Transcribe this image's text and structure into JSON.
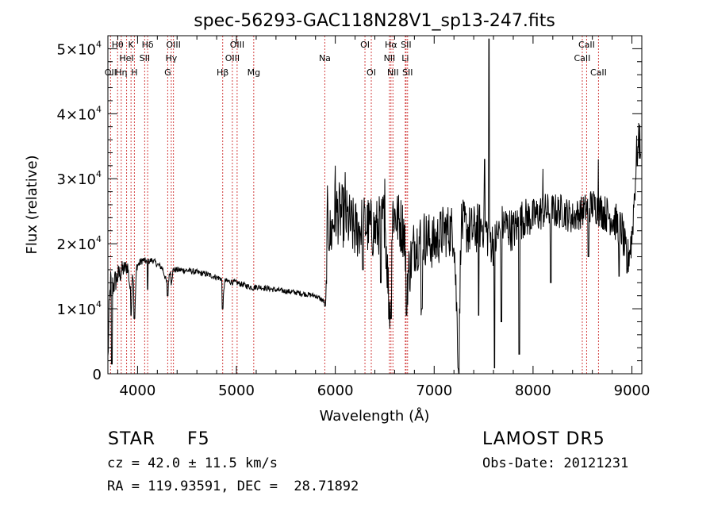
{
  "chart_data": {
    "type": "line",
    "title": "spec-56293-GAC118N28V1_sp13-247.fits",
    "xlabel": "Wavelength (Å)",
    "ylabel": "Flux (relative)",
    "xlim": [
      3700,
      9100
    ],
    "ylim": [
      0,
      52000
    ],
    "x_ticks": [
      4000,
      5000,
      6000,
      7000,
      8000,
      9000
    ],
    "y_ticks": [
      {
        "value": 0,
        "base": "0",
        "exp": ""
      },
      {
        "value": 10000,
        "base": "1×10",
        "exp": "4"
      },
      {
        "value": 20000,
        "base": "2×10",
        "exp": "4"
      },
      {
        "value": 30000,
        "base": "3×10",
        "exp": "4"
      },
      {
        "value": 40000,
        "base": "4×10",
        "exp": "4"
      },
      {
        "value": 50000,
        "base": "5×10",
        "exp": "4"
      }
    ],
    "grid": false,
    "legend": "none",
    "series_color": "#000000",
    "line_marker_color": "#cc2222",
    "spectral_lines": [
      {
        "label": "OII",
        "wavelength": 3727,
        "row": 3
      },
      {
        "label": "Hθ",
        "wavelength": 3798,
        "row": 1
      },
      {
        "label": "Hη",
        "wavelength": 3835,
        "row": 3
      },
      {
        "label": "HeI",
        "wavelength": 3889,
        "row": 2
      },
      {
        "label": "K",
        "wavelength": 3934,
        "row": 1
      },
      {
        "label": "H",
        "wavelength": 3968,
        "row": 3
      },
      {
        "label": "SII",
        "wavelength": 4072,
        "row": 2
      },
      {
        "label": "Hδ",
        "wavelength": 4102,
        "row": 1
      },
      {
        "label": "G",
        "wavelength": 4305,
        "row": 3
      },
      {
        "label": "Hγ",
        "wavelength": 4341,
        "row": 2
      },
      {
        "label": "OIII",
        "wavelength": 4363,
        "row": 1
      },
      {
        "label": "Hβ",
        "wavelength": 4861,
        "row": 3
      },
      {
        "label": "OIII",
        "wavelength": 4959,
        "row": 2
      },
      {
        "label": "OIII",
        "wavelength": 5007,
        "row": 1
      },
      {
        "label": "Mg",
        "wavelength": 5175,
        "row": 3
      },
      {
        "label": "Na",
        "wavelength": 5894,
        "row": 2
      },
      {
        "label": "OI",
        "wavelength": 6300,
        "row": 1
      },
      {
        "label": "OI",
        "wavelength": 6364,
        "row": 3
      },
      {
        "label": "NII",
        "wavelength": 6548,
        "row": 2
      },
      {
        "label": "Hα",
        "wavelength": 6563,
        "row": 1
      },
      {
        "label": "NII",
        "wavelength": 6583,
        "row": 3
      },
      {
        "label": "SII",
        "wavelength": 6716,
        "row": 1
      },
      {
        "label": "Li",
        "wavelength": 6708,
        "row": 2
      },
      {
        "label": "SII",
        "wavelength": 6731,
        "row": 3
      },
      {
        "label": "CaII",
        "wavelength": 8498,
        "row": 2
      },
      {
        "label": "CaII",
        "wavelength": 8542,
        "row": 1
      },
      {
        "label": "CaII",
        "wavelength": 8662,
        "row": 3
      }
    ],
    "spectrum_anchors": [
      [
        3700,
        2000
      ],
      [
        3712,
        9000
      ],
      [
        3725,
        14000
      ],
      [
        3750,
        13500
      ],
      [
        3800,
        15000
      ],
      [
        3850,
        16000
      ],
      [
        3900,
        16500
      ],
      [
        3940,
        11000
      ],
      [
        3950,
        16000
      ],
      [
        3975,
        10500
      ],
      [
        3990,
        16500
      ],
      [
        4050,
        17500
      ],
      [
        4100,
        17200
      ],
      [
        4150,
        17500
      ],
      [
        4200,
        16800
      ],
      [
        4250,
        16300
      ],
      [
        4305,
        13500
      ],
      [
        4330,
        16000
      ],
      [
        4340,
        14000
      ],
      [
        4360,
        16000
      ],
      [
        4500,
        15900
      ],
      [
        4700,
        15300
      ],
      [
        4850,
        14600
      ],
      [
        4862,
        10500
      ],
      [
        4880,
        14300
      ],
      [
        5000,
        14000
      ],
      [
        5170,
        13200
      ],
      [
        5200,
        13400
      ],
      [
        5400,
        12900
      ],
      [
        5600,
        12500
      ],
      [
        5800,
        12000
      ],
      [
        5880,
        11200
      ],
      [
        5905,
        10600
      ],
      [
        5920,
        24000
      ],
      [
        5950,
        21000
      ],
      [
        6000,
        25000
      ],
      [
        6100,
        24000
      ],
      [
        6200,
        22000
      ],
      [
        6300,
        23000
      ],
      [
        6400,
        22000
      ],
      [
        6500,
        24000
      ],
      [
        6550,
        9000
      ],
      [
        6580,
        25000
      ],
      [
        6700,
        22000
      ],
      [
        6720,
        14000
      ],
      [
        6800,
        20000
      ],
      [
        6900,
        21000
      ],
      [
        7000,
        20000
      ],
      [
        7100,
        22000
      ],
      [
        7200,
        22000
      ],
      [
        7250,
        0
      ],
      [
        7270,
        23000
      ],
      [
        7350,
        22000
      ],
      [
        7400,
        22000
      ],
      [
        7500,
        23000
      ],
      [
        7550,
        21000
      ],
      [
        7600,
        20000
      ],
      [
        7700,
        23000
      ],
      [
        7800,
        22000
      ],
      [
        7900,
        24000
      ],
      [
        8000,
        24000
      ],
      [
        8100,
        25000
      ],
      [
        8200,
        25000
      ],
      [
        8300,
        25000
      ],
      [
        8400,
        24000
      ],
      [
        8500,
        25000
      ],
      [
        8600,
        26000
      ],
      [
        8700,
        25000
      ],
      [
        8800,
        24000
      ],
      [
        8900,
        22000
      ],
      [
        8950,
        17000
      ],
      [
        9000,
        21000
      ],
      [
        9050,
        34000
      ],
      [
        9080,
        36000
      ]
    ],
    "spectrum_dips": [
      [
        3740,
        1500
      ],
      [
        3934,
        9000
      ],
      [
        3968,
        8500
      ],
      [
        4102,
        13000
      ],
      [
        4305,
        12000
      ],
      [
        4861,
        10000
      ],
      [
        5895,
        10400
      ],
      [
        6280,
        16000
      ],
      [
        6460,
        14000
      ],
      [
        6563,
        8500
      ],
      [
        6720,
        9000
      ],
      [
        6870,
        9000
      ],
      [
        6875,
        10000
      ],
      [
        7250,
        0
      ],
      [
        7450,
        9000
      ],
      [
        7610,
        900
      ],
      [
        7680,
        8000
      ],
      [
        7860,
        3000
      ],
      [
        8180,
        14000
      ],
      [
        8560,
        18000
      ],
      [
        8870,
        15000
      ],
      [
        8950,
        15500
      ]
    ],
    "spectrum_spikes": [
      [
        7555,
        51500
      ],
      [
        7510,
        33000
      ],
      [
        6000,
        32000
      ],
      [
        6100,
        31000
      ],
      [
        6500,
        30000
      ],
      [
        8100,
        31500
      ],
      [
        8660,
        33000
      ],
      [
        9060,
        35000
      ]
    ],
    "noise_amplitude": [
      [
        3700,
        2500
      ],
      [
        3950,
        800
      ],
      [
        4100,
        500
      ],
      [
        5900,
        400
      ],
      [
        5920,
        5000
      ],
      [
        6800,
        4500
      ],
      [
        7400,
        4000
      ],
      [
        8000,
        3000
      ],
      [
        8500,
        2500
      ],
      [
        9100,
        3500
      ]
    ]
  },
  "info": {
    "object_type": "STAR",
    "subclass": "F5",
    "survey": "LAMOST DR5",
    "redshift_text": "cz = 42.0 ± 11.5 km/s",
    "obs_date_text": "Obs-Date: 20121231",
    "coords_text": "RA = 119.93591, DEC =  28.71892"
  }
}
